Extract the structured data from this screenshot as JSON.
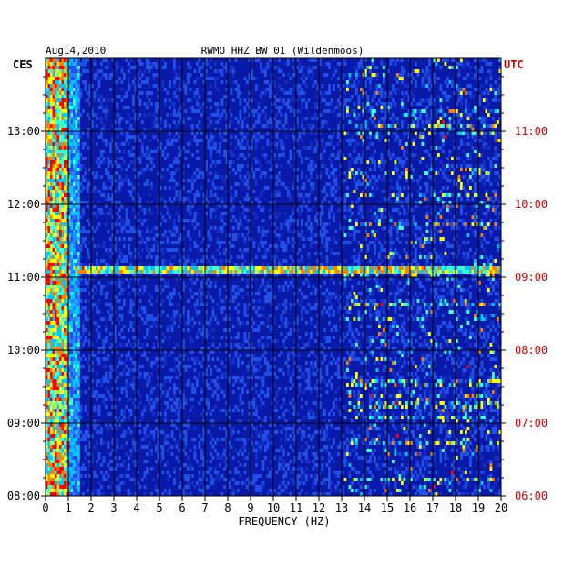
{
  "chart_data": {
    "type": "heatmap",
    "date": "Aug14,2010",
    "title": "RWMO HHZ BW 01 (Wildenmoos)",
    "left_axis_label": "CES",
    "right_axis_label": "UTC",
    "xlabel": "FREQUENCY (HZ)",
    "xlim": [
      0,
      20
    ],
    "x_ticks": [
      "0",
      "1",
      "2",
      "3",
      "4",
      "5",
      "6",
      "7",
      "8",
      "9",
      "10",
      "11",
      "12",
      "13",
      "14",
      "15",
      "16",
      "17",
      "18",
      "19",
      "20"
    ],
    "left_time_range": [
      "08:00",
      "14:00"
    ],
    "left_time_ticks": [
      "08:00",
      "09:00",
      "10:00",
      "11:00",
      "12:00",
      "13:00"
    ],
    "right_time_ticks": [
      "06:00",
      "07:00",
      "08:00",
      "09:00",
      "10:00",
      "11:00"
    ],
    "grid": true,
    "colors": {
      "background": "#0a1aa8",
      "grid": "#000000",
      "utc_text": "#d40000",
      "low": "#1530c8",
      "mid": "#00c8ff",
      "high": "#ffff00",
      "peak": "#ff0000"
    },
    "features": [
      {
        "description_from_image": "strong low-frequency energy 0-1 Hz throughout"
      },
      {
        "description_from_image": "broadband line near 11:10 CES spanning 1-20 Hz"
      }
    ]
  }
}
